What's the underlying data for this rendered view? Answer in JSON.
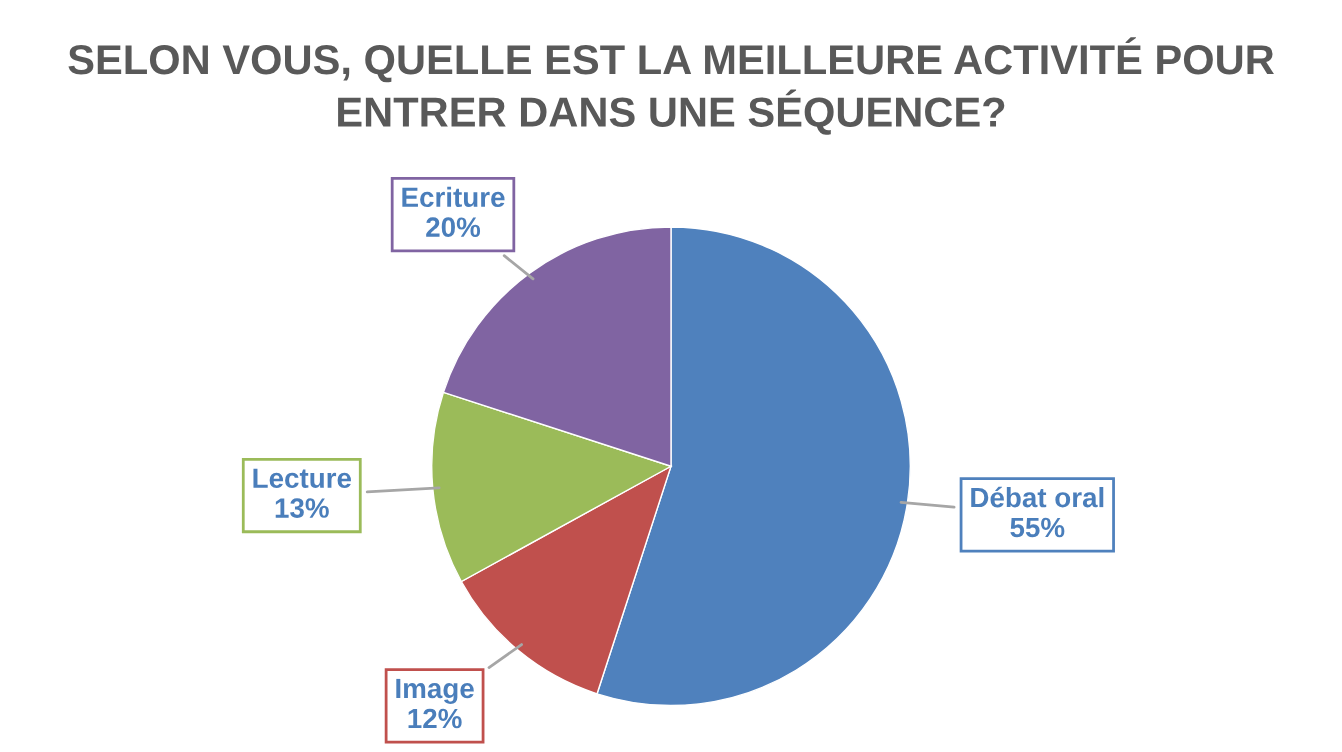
{
  "chart_data": {
    "type": "pie",
    "title": "SELON VOUS, QUELLE EST LA MEILLEURE ACTIVITÉ POUR ENTRER DANS UNE SÉQUENCE?",
    "categories": [
      "Débat oral",
      "Image",
      "Lecture",
      "Ecriture"
    ],
    "values": [
      55,
      12,
      13,
      20
    ],
    "value_labels": [
      "55%",
      "12%",
      "13%",
      "20%"
    ],
    "colors": [
      "#4f81bd",
      "#c0504d",
      "#9bbb59",
      "#8064a2"
    ]
  }
}
